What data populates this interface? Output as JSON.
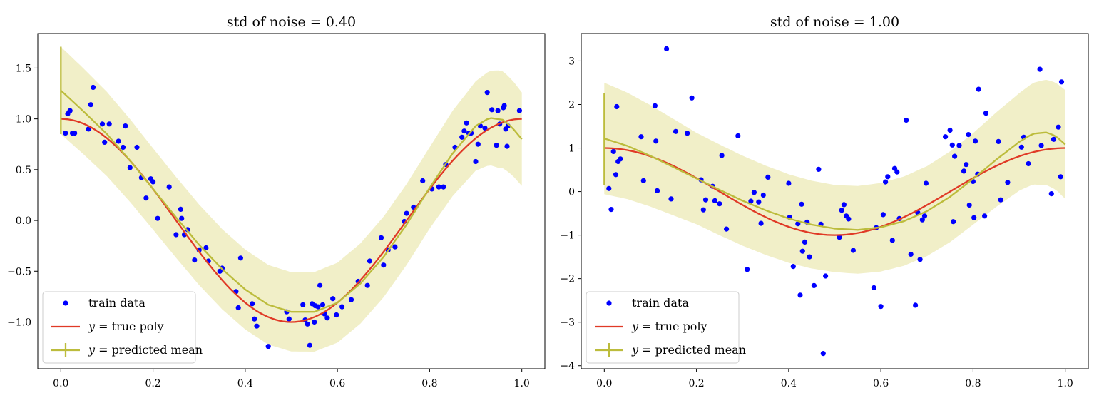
{
  "chart_data": [
    {
      "type": "scatter",
      "title": "std of noise = 0.40",
      "xlabel": "",
      "ylabel": "",
      "xlim": [
        -0.05,
        1.05
      ],
      "ylim": [
        -1.46,
        1.84
      ],
      "xticks": [
        0.0,
        0.2,
        0.4,
        0.6,
        0.8,
        1.0
      ],
      "xtick_labels": [
        "0.0",
        "0.2",
        "0.4",
        "0.6",
        "0.8",
        "1.0"
      ],
      "yticks": [
        -1.0,
        -0.5,
        0.0,
        0.5,
        1.0,
        1.5
      ],
      "ytick_labels": [
        "−1.0",
        "−0.5",
        "0.0",
        "0.5",
        "1.0",
        "1.5"
      ],
      "legend_position": "lower-left",
      "legend": [
        {
          "kind": "marker",
          "label": "train data",
          "prefix": ""
        },
        {
          "kind": "line",
          "label": "true poly",
          "prefix": "y = "
        },
        {
          "kind": "errorbar",
          "label": "predicted mean",
          "prefix": "y = "
        }
      ],
      "colors": {
        "points": "#0000ff",
        "true": "#e03a26",
        "mean": "#bcbc3c",
        "band": "#f1efc8"
      },
      "band_halfwidth": 0.4,
      "first_errorbar": {
        "x": 0.0,
        "low": 0.85,
        "high": 1.71
      },
      "true_poly": {
        "function": "cos(2*pi*x)"
      },
      "predicted_mean": {
        "x": [
          0,
          0.05,
          0.1,
          0.15,
          0.2,
          0.25,
          0.3,
          0.35,
          0.4,
          0.45,
          0.5,
          0.55,
          0.6,
          0.65,
          0.7,
          0.75,
          0.8,
          0.85,
          0.9,
          0.93,
          0.96,
          0.98,
          1.0
        ],
        "y": [
          1.28,
          1.07,
          0.85,
          0.59,
          0.31,
          0.03,
          -0.24,
          -0.48,
          -0.68,
          -0.83,
          -0.9,
          -0.9,
          -0.81,
          -0.62,
          -0.36,
          -0.04,
          0.32,
          0.66,
          0.93,
          1.01,
          0.99,
          0.91,
          0.8
        ]
      },
      "band_width_points": [
        {
          "x": 0,
          "hw": 0.43
        },
        {
          "x": 0.2,
          "hw": 0.4
        },
        {
          "x": 0.5,
          "hw": 0.39
        },
        {
          "x": 0.8,
          "hw": 0.4
        },
        {
          "x": 0.9,
          "hw": 0.44
        },
        {
          "x": 0.95,
          "hw": 0.48
        },
        {
          "x": 1.0,
          "hw": 0.46
        }
      ],
      "points": [
        [
          0.01,
          0.86
        ],
        [
          0.015,
          1.05
        ],
        [
          0.02,
          1.08
        ],
        [
          0.025,
          0.86
        ],
        [
          0.03,
          0.86
        ],
        [
          0.06,
          0.9
        ],
        [
          0.065,
          1.14
        ],
        [
          0.07,
          1.31
        ],
        [
          0.09,
          0.95
        ],
        [
          0.095,
          0.77
        ],
        [
          0.105,
          0.95
        ],
        [
          0.125,
          0.78
        ],
        [
          0.135,
          0.72
        ],
        [
          0.14,
          0.93
        ],
        [
          0.15,
          0.52
        ],
        [
          0.165,
          0.72
        ],
        [
          0.175,
          0.42
        ],
        [
          0.185,
          0.22
        ],
        [
          0.195,
          0.41
        ],
        [
          0.2,
          0.38
        ],
        [
          0.21,
          0.02
        ],
        [
          0.235,
          0.33
        ],
        [
          0.25,
          -0.14
        ],
        [
          0.26,
          0.11
        ],
        [
          0.262,
          0.02
        ],
        [
          0.268,
          -0.14
        ],
        [
          0.275,
          -0.09
        ],
        [
          0.29,
          -0.39
        ],
        [
          0.3,
          -0.29
        ],
        [
          0.315,
          -0.27
        ],
        [
          0.32,
          -0.4
        ],
        [
          0.345,
          -0.5
        ],
        [
          0.35,
          -0.47
        ],
        [
          0.38,
          -0.7
        ],
        [
          0.385,
          -0.86
        ],
        [
          0.39,
          -0.37
        ],
        [
          0.415,
          -0.82
        ],
        [
          0.42,
          -0.97
        ],
        [
          0.425,
          -1.04
        ],
        [
          0.45,
          -1.24
        ],
        [
          0.49,
          -0.9
        ],
        [
          0.495,
          -0.97
        ],
        [
          0.525,
          -0.83
        ],
        [
          0.53,
          -0.98
        ],
        [
          0.535,
          -1.02
        ],
        [
          0.54,
          -1.23
        ],
        [
          0.545,
          -0.82
        ],
        [
          0.55,
          -1.0
        ],
        [
          0.552,
          -0.84
        ],
        [
          0.558,
          -0.85
        ],
        [
          0.562,
          -0.64
        ],
        [
          0.568,
          -0.83
        ],
        [
          0.572,
          -0.92
        ],
        [
          0.578,
          -0.96
        ],
        [
          0.59,
          -0.77
        ],
        [
          0.598,
          -0.93
        ],
        [
          0.61,
          -0.85
        ],
        [
          0.63,
          -0.78
        ],
        [
          0.645,
          -0.6
        ],
        [
          0.665,
          -0.64
        ],
        [
          0.67,
          -0.4
        ],
        [
          0.695,
          -0.17
        ],
        [
          0.7,
          -0.44
        ],
        [
          0.71,
          -0.29
        ],
        [
          0.725,
          -0.26
        ],
        [
          0.745,
          -0.01
        ],
        [
          0.75,
          0.07
        ],
        [
          0.765,
          0.13
        ],
        [
          0.785,
          0.39
        ],
        [
          0.805,
          0.31
        ],
        [
          0.82,
          0.33
        ],
        [
          0.83,
          0.33
        ],
        [
          0.835,
          0.55
        ],
        [
          0.855,
          0.72
        ],
        [
          0.87,
          0.82
        ],
        [
          0.875,
          0.88
        ],
        [
          0.88,
          0.96
        ],
        [
          0.885,
          0.86
        ],
        [
          0.89,
          0.86
        ],
        [
          0.9,
          0.58
        ],
        [
          0.905,
          0.75
        ],
        [
          0.91,
          0.93
        ],
        [
          0.92,
          0.91
        ],
        [
          0.925,
          1.26
        ],
        [
          0.935,
          1.09
        ],
        [
          0.945,
          0.74
        ],
        [
          0.948,
          1.08
        ],
        [
          0.952,
          0.95
        ],
        [
          0.96,
          1.11
        ],
        [
          0.962,
          1.13
        ],
        [
          0.965,
          0.9
        ],
        [
          0.968,
          0.73
        ],
        [
          0.97,
          0.93
        ],
        [
          0.995,
          1.08
        ]
      ]
    },
    {
      "type": "scatter",
      "title": "std of noise = 1.00",
      "xlabel": "",
      "ylabel": "",
      "xlim": [
        -0.05,
        1.05
      ],
      "ylim": [
        -4.07,
        3.63
      ],
      "xticks": [
        0.0,
        0.2,
        0.4,
        0.6,
        0.8,
        1.0
      ],
      "xtick_labels": [
        "0.0",
        "0.2",
        "0.4",
        "0.6",
        "0.8",
        "1.0"
      ],
      "yticks": [
        -4,
        -3,
        -2,
        -1,
        0,
        1,
        2,
        3
      ],
      "ytick_labels": [
        "−4",
        "−3",
        "−2",
        "−1",
        "0",
        "1",
        "2",
        "3"
      ],
      "legend_position": "lower-left",
      "legend": [
        {
          "kind": "marker",
          "label": "train data",
          "prefix": ""
        },
        {
          "kind": "line",
          "label": "true poly",
          "prefix": "y = "
        },
        {
          "kind": "errorbar",
          "label": "predicted mean",
          "prefix": "y = "
        }
      ],
      "colors": {
        "points": "#0000ff",
        "true": "#e03a26",
        "mean": "#bcbc3c",
        "band": "#f1efc8"
      },
      "first_errorbar": {
        "x": 0.0,
        "low": 0.15,
        "high": 2.26
      },
      "true_poly": {
        "function": "cos(2*pi*x)"
      },
      "predicted_mean": {
        "x": [
          0,
          0.05,
          0.1,
          0.15,
          0.2,
          0.25,
          0.3,
          0.35,
          0.4,
          0.45,
          0.5,
          0.55,
          0.6,
          0.65,
          0.7,
          0.75,
          0.8,
          0.85,
          0.9,
          0.93,
          0.96,
          0.98,
          1.0
        ],
        "y": [
          1.22,
          1.05,
          0.82,
          0.56,
          0.3,
          0.04,
          -0.21,
          -0.43,
          -0.62,
          -0.76,
          -0.85,
          -0.88,
          -0.82,
          -0.68,
          -0.45,
          -0.12,
          0.29,
          0.73,
          1.14,
          1.33,
          1.36,
          1.27,
          1.08
        ]
      },
      "band_width_points": [
        {
          "x": 0,
          "hw": 1.28
        },
        {
          "x": 0.2,
          "hw": 1.05
        },
        {
          "x": 0.5,
          "hw": 1.0
        },
        {
          "x": 0.8,
          "hw": 1.05
        },
        {
          "x": 0.9,
          "hw": 1.12
        },
        {
          "x": 0.95,
          "hw": 1.2
        },
        {
          "x": 1.0,
          "hw": 1.25
        }
      ],
      "points": [
        [
          0.01,
          0.07
        ],
        [
          0.015,
          -0.41
        ],
        [
          0.02,
          0.92
        ],
        [
          0.025,
          0.39
        ],
        [
          0.027,
          1.95
        ],
        [
          0.03,
          0.69
        ],
        [
          0.035,
          0.75
        ],
        [
          0.08,
          1.26
        ],
        [
          0.085,
          0.25
        ],
        [
          0.11,
          1.97
        ],
        [
          0.112,
          1.16
        ],
        [
          0.115,
          0.02
        ],
        [
          0.135,
          3.28
        ],
        [
          0.145,
          -0.17
        ],
        [
          0.155,
          1.38
        ],
        [
          0.18,
          1.34
        ],
        [
          0.19,
          2.15
        ],
        [
          0.21,
          0.27
        ],
        [
          0.215,
          -0.42
        ],
        [
          0.22,
          -0.19
        ],
        [
          0.235,
          0.12
        ],
        [
          0.24,
          -0.21
        ],
        [
          0.25,
          -0.28
        ],
        [
          0.255,
          0.83
        ],
        [
          0.265,
          -0.86
        ],
        [
          0.29,
          1.28
        ],
        [
          0.31,
          -1.79
        ],
        [
          0.318,
          -0.22
        ],
        [
          0.325,
          -0.02
        ],
        [
          0.335,
          -0.24
        ],
        [
          0.34,
          -0.73
        ],
        [
          0.345,
          -0.08
        ],
        [
          0.355,
          0.33
        ],
        [
          0.4,
          0.19
        ],
        [
          0.402,
          -0.59
        ],
        [
          0.41,
          -1.72
        ],
        [
          0.42,
          -0.74
        ],
        [
          0.425,
          -2.38
        ],
        [
          0.428,
          -0.29
        ],
        [
          0.43,
          -1.37
        ],
        [
          0.435,
          -1.16
        ],
        [
          0.44,
          -0.7
        ],
        [
          0.445,
          -1.5
        ],
        [
          0.455,
          -2.16
        ],
        [
          0.465,
          0.51
        ],
        [
          0.47,
          -0.75
        ],
        [
          0.475,
          -3.72
        ],
        [
          0.48,
          -1.94
        ],
        [
          0.51,
          -1.05
        ],
        [
          0.515,
          -0.43
        ],
        [
          0.52,
          -0.3
        ],
        [
          0.525,
          -0.56
        ],
        [
          0.53,
          -0.63
        ],
        [
          0.54,
          -1.35
        ],
        [
          0.585,
          -2.21
        ],
        [
          0.59,
          -0.83
        ],
        [
          0.6,
          -2.64
        ],
        [
          0.605,
          -0.53
        ],
        [
          0.61,
          0.22
        ],
        [
          0.615,
          0.34
        ],
        [
          0.625,
          -1.12
        ],
        [
          0.63,
          0.53
        ],
        [
          0.635,
          0.45
        ],
        [
          0.64,
          -0.62
        ],
        [
          0.655,
          1.64
        ],
        [
          0.665,
          -1.44
        ],
        [
          0.675,
          -2.61
        ],
        [
          0.68,
          -0.48
        ],
        [
          0.685,
          -1.56
        ],
        [
          0.69,
          -0.65
        ],
        [
          0.695,
          -0.56
        ],
        [
          0.698,
          0.19
        ],
        [
          0.74,
          1.26
        ],
        [
          0.75,
          1.41
        ],
        [
          0.755,
          1.07
        ],
        [
          0.757,
          -0.69
        ],
        [
          0.76,
          0.81
        ],
        [
          0.77,
          1.06
        ],
        [
          0.78,
          0.47
        ],
        [
          0.785,
          0.62
        ],
        [
          0.79,
          1.31
        ],
        [
          0.792,
          -0.31
        ],
        [
          0.8,
          0.23
        ],
        [
          0.802,
          -0.6
        ],
        [
          0.805,
          1.16
        ],
        [
          0.81,
          0.4
        ],
        [
          0.812,
          2.35
        ],
        [
          0.825,
          -0.56
        ],
        [
          0.828,
          1.8
        ],
        [
          0.855,
          1.15
        ],
        [
          0.86,
          -0.19
        ],
        [
          0.875,
          0.21
        ],
        [
          0.905,
          1.02
        ],
        [
          0.91,
          1.25
        ],
        [
          0.92,
          0.64
        ],
        [
          0.945,
          2.81
        ],
        [
          0.948,
          1.06
        ],
        [
          0.97,
          -0.05
        ],
        [
          0.975,
          1.2
        ],
        [
          0.985,
          1.48
        ],
        [
          0.99,
          0.34
        ],
        [
          0.992,
          2.52
        ]
      ]
    }
  ]
}
